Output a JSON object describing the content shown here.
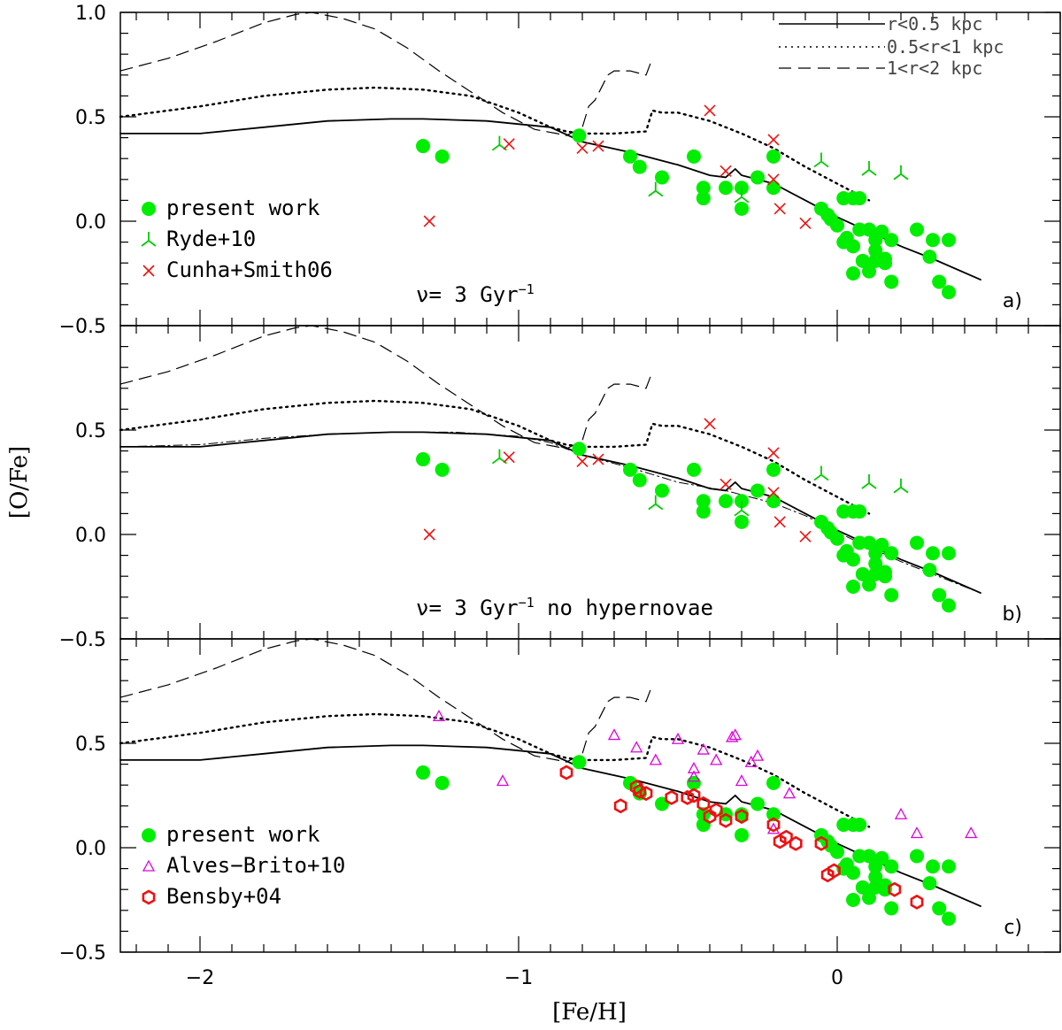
{
  "chart_data": {
    "type": "scatter",
    "xlabel": "[Fe/H]",
    "ylabel": "[O/Fe]",
    "xlim": [
      -2.25,
      0.7
    ],
    "xticks": [
      -2,
      -1,
      0
    ],
    "xtick_labels": [
      "−2",
      "−1",
      "0"
    ],
    "line_legend": [
      {
        "label": "r<0.5 kpc",
        "style": "solid"
      },
      {
        "label": "0.5<r<1 kpc",
        "style": "dotted"
      },
      {
        "label": "1<r<2 kpc",
        "style": "dashed"
      }
    ],
    "models": {
      "solid": {
        "x": [
          -2.25,
          -2.0,
          -1.8,
          -1.6,
          -1.4,
          -1.3,
          -1.1,
          -0.9,
          -0.8,
          -0.65,
          -0.5,
          -0.4,
          -0.35,
          -0.32,
          -0.3,
          -0.2,
          -0.1,
          0.0,
          0.1,
          0.2,
          0.3,
          0.45
        ],
        "y": [
          0.42,
          0.42,
          0.45,
          0.48,
          0.49,
          0.49,
          0.48,
          0.45,
          0.38,
          0.33,
          0.27,
          0.22,
          0.21,
          0.25,
          0.22,
          0.18,
          0.1,
          0.02,
          -0.05,
          -0.12,
          -0.18,
          -0.28
        ]
      },
      "dotted": {
        "x": [
          -2.25,
          -2.0,
          -1.8,
          -1.6,
          -1.45,
          -1.3,
          -1.15,
          -1.0,
          -0.9,
          -0.85,
          -0.8,
          -0.7,
          -0.6,
          -0.58,
          -0.55,
          -0.5,
          -0.4,
          -0.3,
          -0.2,
          -0.1,
          0.0,
          0.1
        ],
        "y": [
          0.5,
          0.55,
          0.6,
          0.63,
          0.64,
          0.63,
          0.6,
          0.52,
          0.45,
          0.43,
          0.42,
          0.42,
          0.43,
          0.53,
          0.52,
          0.52,
          0.48,
          0.42,
          0.35,
          0.26,
          0.18,
          0.1
        ]
      },
      "dashed": {
        "x": [
          -2.25,
          -2.1,
          -1.95,
          -1.8,
          -1.7,
          -1.65,
          -1.55,
          -1.45,
          -1.35,
          -1.25,
          -1.15,
          -1.05,
          -0.95,
          -0.88,
          -0.85,
          -0.8,
          -0.78,
          -0.76,
          -0.72,
          -0.7,
          -0.65,
          -0.6,
          -0.58
        ],
        "y": [
          0.72,
          0.78,
          0.86,
          0.95,
          0.99,
          1.0,
          0.97,
          0.92,
          0.83,
          0.72,
          0.62,
          0.52,
          0.44,
          0.42,
          0.41,
          0.45,
          0.55,
          0.58,
          0.7,
          0.72,
          0.72,
          0.7,
          0.78
        ]
      },
      "dashdot_b": {
        "x": [
          -2.25,
          -2.0,
          -1.8,
          -1.6,
          -1.4,
          -1.2,
          -1.0,
          -0.9,
          -0.8,
          -0.65,
          -0.5,
          -0.35,
          -0.2,
          -0.1,
          0.0,
          0.1,
          0.2,
          0.3,
          0.45
        ],
        "y": [
          0.42,
          0.43,
          0.46,
          0.48,
          0.49,
          0.49,
          0.47,
          0.44,
          0.38,
          0.32,
          0.25,
          0.21,
          0.15,
          0.09,
          0.01,
          -0.06,
          -0.13,
          -0.19,
          -0.28
        ]
      }
    },
    "datasets": {
      "present_work": {
        "x": [
          -1.3,
          -1.24,
          -0.81,
          -0.65,
          -0.62,
          -0.55,
          -0.45,
          -0.42,
          -0.42,
          -0.35,
          -0.3,
          -0.3,
          -0.25,
          -0.2,
          -0.2,
          -0.05,
          -0.03,
          0.02,
          0.05,
          0.07,
          -0.02,
          0.0,
          0.03,
          0.07,
          0.02,
          0.05,
          0.1,
          0.12,
          0.14,
          0.17,
          0.08,
          0.12,
          0.15,
          0.05,
          0.1,
          0.15,
          0.12,
          0.17,
          0.25,
          0.3,
          0.35,
          0.35,
          0.29,
          0.32
        ],
        "y": [
          0.36,
          0.31,
          0.41,
          0.31,
          0.26,
          0.21,
          0.31,
          0.16,
          0.11,
          0.16,
          0.16,
          0.06,
          0.21,
          0.31,
          0.16,
          0.06,
          0.03,
          0.11,
          0.11,
          0.11,
          0.01,
          -0.02,
          -0.08,
          -0.04,
          -0.1,
          -0.12,
          -0.04,
          -0.09,
          -0.05,
          -0.09,
          -0.19,
          -0.19,
          -0.18,
          -0.25,
          -0.24,
          -0.2,
          -0.14,
          -0.29,
          -0.04,
          -0.09,
          -0.09,
          -0.34,
          -0.17,
          -0.29
        ]
      },
      "ryde10": {
        "x": [
          -1.06,
          -0.57,
          -0.3,
          -0.05,
          0.1,
          0.2
        ],
        "y": [
          0.37,
          0.15,
          0.12,
          0.29,
          0.25,
          0.23
        ]
      },
      "cunha_smith06": {
        "x": [
          -1.28,
          -1.03,
          -0.8,
          -0.75,
          -0.4,
          -0.35,
          -0.2,
          -0.2,
          -0.18,
          -0.1
        ],
        "y": [
          0.0,
          0.37,
          0.35,
          0.36,
          0.53,
          0.24,
          0.39,
          0.2,
          0.06,
          -0.01
        ]
      },
      "alves_brito10": {
        "x": [
          -1.25,
          -1.05,
          -0.7,
          -0.63,
          -0.57,
          -0.5,
          -0.45,
          -0.45,
          -0.42,
          -0.38,
          -0.33,
          -0.32,
          -0.3,
          -0.27,
          -0.25,
          -0.2,
          -0.15,
          0.2,
          0.25,
          0.42
        ],
        "y": [
          0.63,
          0.32,
          0.54,
          0.48,
          0.42,
          0.52,
          0.38,
          0.34,
          0.47,
          0.42,
          0.53,
          0.54,
          0.32,
          0.41,
          0.44,
          0.09,
          0.26,
          0.16,
          0.07,
          0.07
        ]
      },
      "bensby04": {
        "x": [
          -0.85,
          -0.68,
          -0.63,
          -0.62,
          -0.6,
          -0.52,
          -0.47,
          -0.45,
          -0.42,
          -0.4,
          -0.38,
          -0.35,
          -0.3,
          -0.2,
          -0.18,
          -0.16,
          -0.13,
          -0.05,
          -0.03,
          -0.01,
          0.18,
          0.25
        ],
        "y": [
          0.36,
          0.2,
          0.29,
          0.27,
          0.26,
          0.24,
          0.24,
          0.25,
          0.21,
          0.15,
          0.18,
          0.13,
          0.15,
          0.11,
          0.03,
          0.05,
          0.02,
          0.02,
          -0.13,
          -0.11,
          -0.2,
          -0.26
        ]
      }
    },
    "panels": [
      {
        "id": "a",
        "tag": "a)",
        "ylim": [
          -0.5,
          1.0
        ],
        "yticks": [
          -0.5,
          0.0,
          0.5,
          1.0
        ],
        "ytick_labels": [
          "−0.5",
          "0.0",
          "0.5",
          "1.0"
        ],
        "annotation_prefix": "ν= 3 Gyr",
        "annotation_sup": "−1",
        "annotation_suffix": "",
        "legend": [
          {
            "name": "present_work",
            "label": "present work",
            "marker": "circle",
            "color": "#00ee00"
          },
          {
            "name": "ryde10",
            "label": "Ryde+10",
            "marker": "tri",
            "color": "#00cc00"
          },
          {
            "name": "cunha_smith06",
            "label": "Cunha+Smith06",
            "marker": "x",
            "color": "#ee1111"
          }
        ],
        "models": [
          "solid",
          "dotted",
          "dashed"
        ],
        "datasets": [
          "present_work",
          "ryde10",
          "cunha_smith06"
        ]
      },
      {
        "id": "b",
        "tag": "b)",
        "ylim": [
          -0.5,
          1.0
        ],
        "yticks": [
          -0.5,
          0.0,
          0.5
        ],
        "ytick_labels": [
          "−0.5",
          "0.0",
          "0.5"
        ],
        "annotation_prefix": "ν= 3 Gyr",
        "annotation_sup": "−1",
        "annotation_suffix": " no hypernovae",
        "legend": [],
        "models": [
          "solid",
          "dotted",
          "dashed",
          "dashdot_b"
        ],
        "datasets": [
          "present_work",
          "ryde10",
          "cunha_smith06"
        ]
      },
      {
        "id": "c",
        "tag": "c)",
        "ylim": [
          -0.5,
          1.0
        ],
        "yticks": [
          -0.5,
          0.0,
          0.5
        ],
        "ytick_labels": [
          "−0.5",
          "0.0",
          "0.5"
        ],
        "annotation_prefix": "",
        "annotation_sup": "",
        "annotation_suffix": "",
        "legend": [
          {
            "name": "present_work",
            "label": "present work",
            "marker": "circle",
            "color": "#00ee00"
          },
          {
            "name": "alves_brito10",
            "label": "Alves−Brito+10",
            "marker": "triup",
            "color": "#dd00dd"
          },
          {
            "name": "bensby04",
            "label": "Bensby+04",
            "marker": "hex",
            "color": "#ee1111"
          }
        ],
        "models": [
          "solid",
          "dotted",
          "dashed"
        ],
        "datasets": [
          "present_work",
          "alves_brito10",
          "bensby04"
        ]
      }
    ]
  }
}
